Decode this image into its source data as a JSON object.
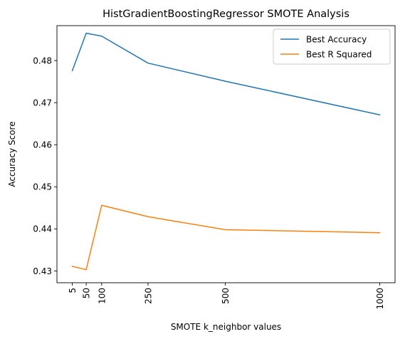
{
  "chart_data": {
    "type": "line",
    "title": "HistGradientBoostingRegressor SMOTE Analysis",
    "xlabel": "SMOTE k_neighbor values",
    "ylabel": "Accuracy Score",
    "x": [
      5,
      50,
      100,
      250,
      500,
      1000
    ],
    "x_tick_labels": [
      "5",
      "50",
      "100",
      "250",
      "500",
      "1000"
    ],
    "x_tick_rotation": 90,
    "xlim": [
      -44.75,
      1049.75
    ],
    "ylim": [
      0.4272,
      0.4883
    ],
    "y_ticks": [
      0.43,
      0.44,
      0.45,
      0.46,
      0.47,
      0.48
    ],
    "y_tick_labels": [
      "0.43",
      "0.44",
      "0.45",
      "0.46",
      "0.47",
      "0.48"
    ],
    "grid": false,
    "legend_position": "top-right",
    "series": [
      {
        "name": "Best Accuracy",
        "color": "#1f77b4",
        "values": [
          0.4776,
          0.4865,
          0.4858,
          0.4794,
          0.4751,
          0.4671
        ]
      },
      {
        "name": "Best R Squared",
        "color": "#ff7f0e",
        "values": [
          0.4311,
          0.4303,
          0.4456,
          0.4429,
          0.4398,
          0.4391
        ]
      }
    ]
  }
}
